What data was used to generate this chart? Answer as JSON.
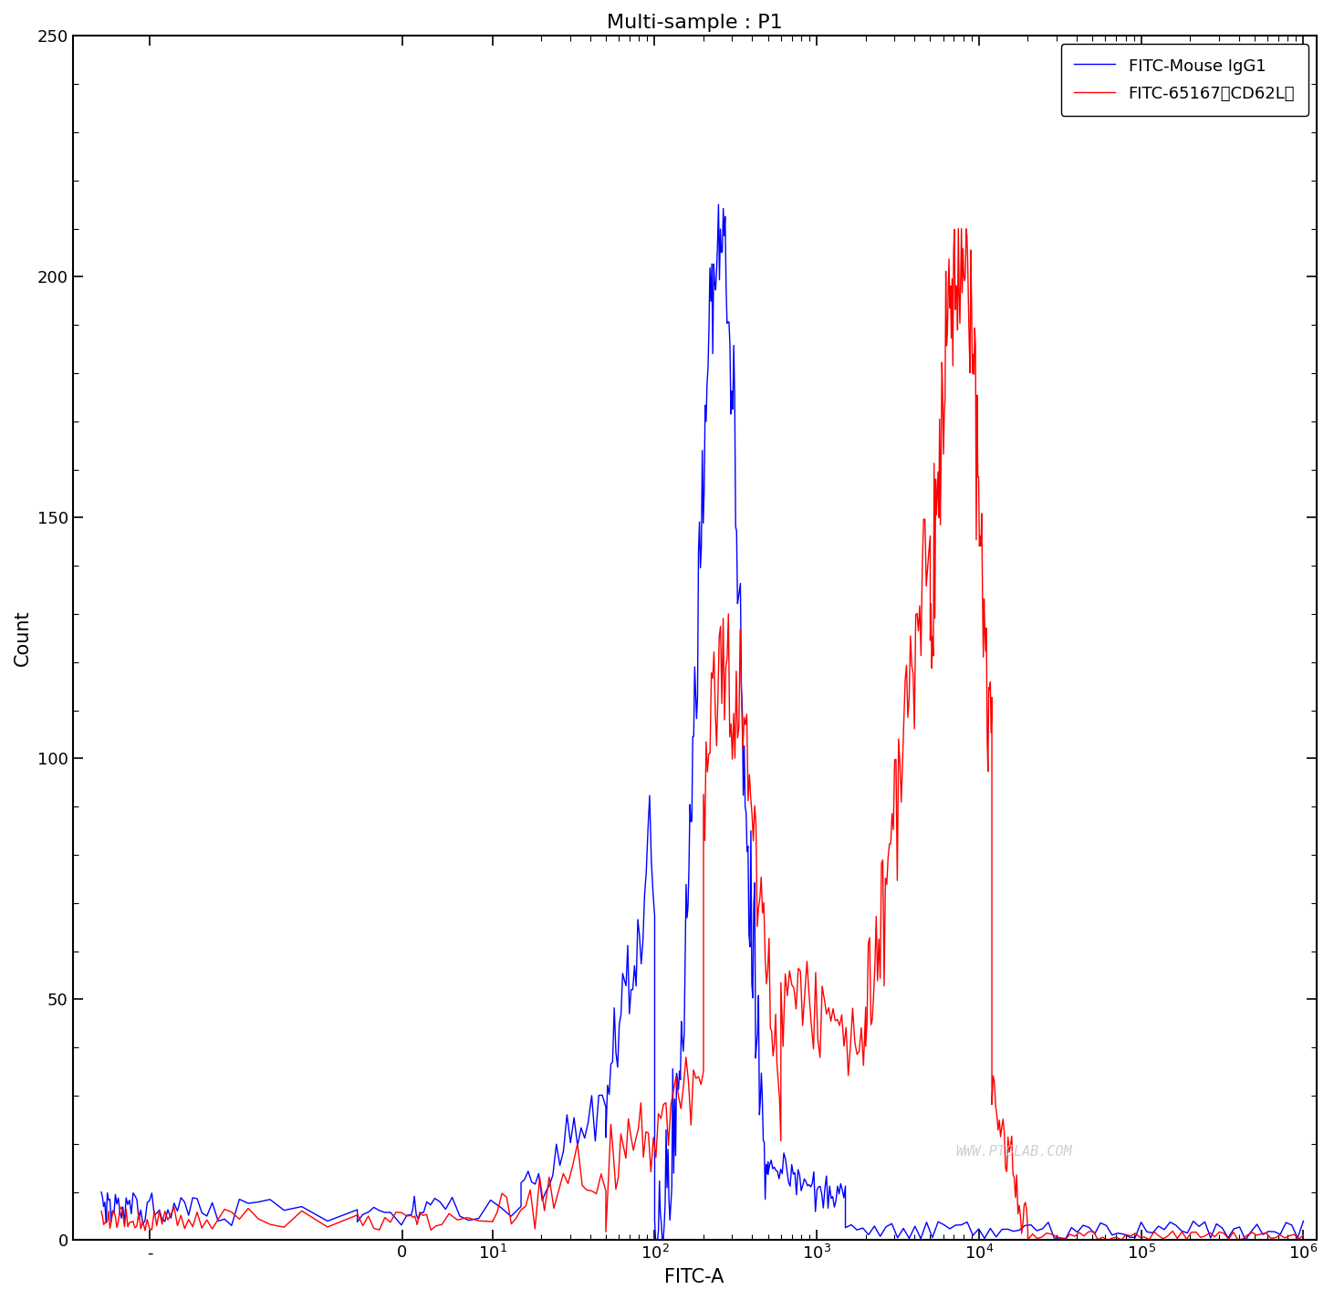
{
  "title": "Multi-sample : P1",
  "xlabel": "FITC-A",
  "ylabel": "Count",
  "ylim": [
    0,
    250
  ],
  "yticks": [
    0,
    50,
    100,
    150,
    200,
    250
  ],
  "legend_labels": [
    "FITC-Mouse IgG1",
    "FITC-65167（CD62L）"
  ],
  "blue_color": "#0000FF",
  "red_color": "#FF0000",
  "watermark": "WWW.PTGLAB.COM",
  "background_color": "#FFFFFF",
  "title_fontsize": 16,
  "axis_label_fontsize": 15,
  "tick_fontsize": 13,
  "legend_fontsize": 13,
  "linthresh": 10,
  "linscale": 0.5
}
